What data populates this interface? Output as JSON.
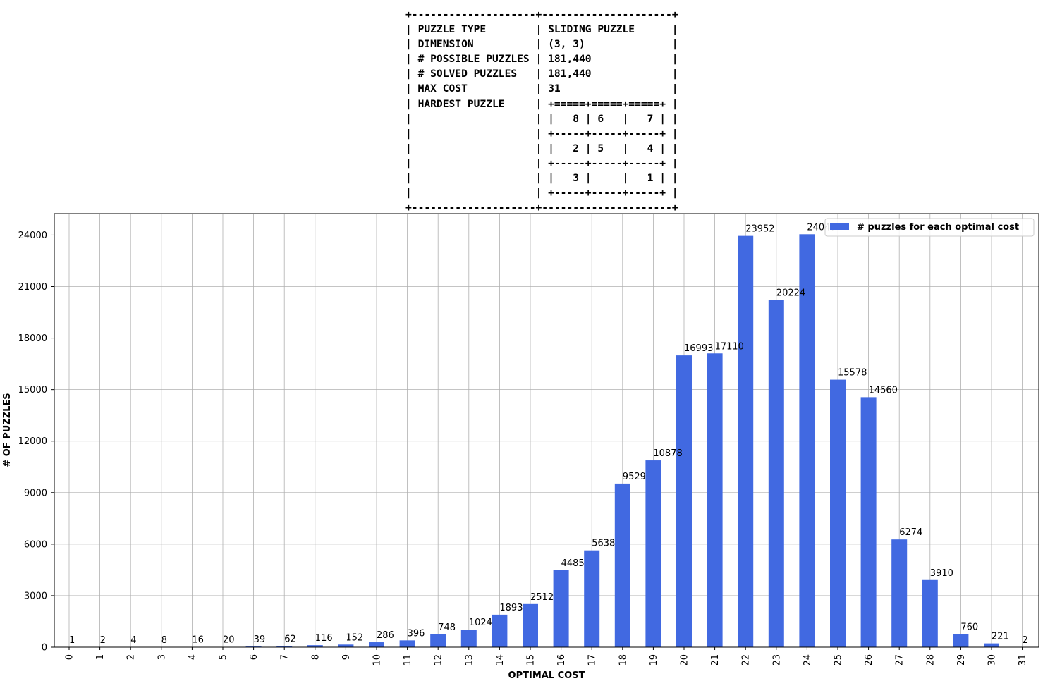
{
  "info_table": {
    "lines": [
      "+--------------------+---------------------+",
      "| PUZZLE TYPE        | SLIDING PUZZLE      |",
      "| DIMENSION          | (3, 3)              |",
      "| # POSSIBLE PUZZLES | 181,440             |",
      "| # SOLVED PUZZLES   | 181,440             |",
      "| MAX COST           | 31                  |",
      "| HARDEST PUZZLE     | +=====+=====+=====+ |",
      "|                    | |   8 | 6   |   7 | |",
      "|                    | +-----+-----+-----+ |",
      "|                    | |   2 | 5   |   4 | |",
      "|                    | +-----+-----+-----+ |",
      "|                    | |   3 |     |   1 | |",
      "|                    | +-----+-----+-----+ |",
      "+--------------------+---------------------+"
    ]
  },
  "chart_data": {
    "type": "bar",
    "categories": [
      "0",
      "1",
      "2",
      "3",
      "4",
      "5",
      "6",
      "7",
      "8",
      "9",
      "10",
      "11",
      "12",
      "13",
      "14",
      "15",
      "16",
      "17",
      "18",
      "19",
      "20",
      "21",
      "22",
      "23",
      "24",
      "25",
      "26",
      "27",
      "28",
      "29",
      "30",
      "31"
    ],
    "series": [
      {
        "name": "# puzzles for each optimal cost",
        "values": [
          1,
          2,
          4,
          8,
          16,
          20,
          39,
          62,
          116,
          152,
          286,
          396,
          748,
          1024,
          1893,
          2512,
          4485,
          5638,
          9529,
          10878,
          16993,
          17110,
          23952,
          20224,
          24047,
          15578,
          14560,
          6274,
          3910,
          760,
          221,
          2
        ],
        "color": "#4169e1"
      }
    ],
    "data_labels": [
      "1",
      "2",
      "4",
      "8",
      "16",
      "20",
      "39",
      "62",
      "116",
      "152",
      "286",
      "396",
      "748",
      "1024",
      "1893",
      "2512",
      "4485",
      "5638",
      "9529",
      "10878",
      "16993",
      "17110",
      "23952",
      "20224",
      "24047",
      "15578",
      "14560",
      "6274",
      "3910",
      "760",
      "221",
      "2"
    ],
    "xlabel": "OPTIMAL COST",
    "ylabel": "# OF PUZZLES",
    "yticks": [
      0,
      3000,
      6000,
      9000,
      12000,
      15000,
      18000,
      21000,
      24000
    ],
    "ylim": [
      0,
      25250
    ],
    "grid": true,
    "legend": "top-right"
  }
}
